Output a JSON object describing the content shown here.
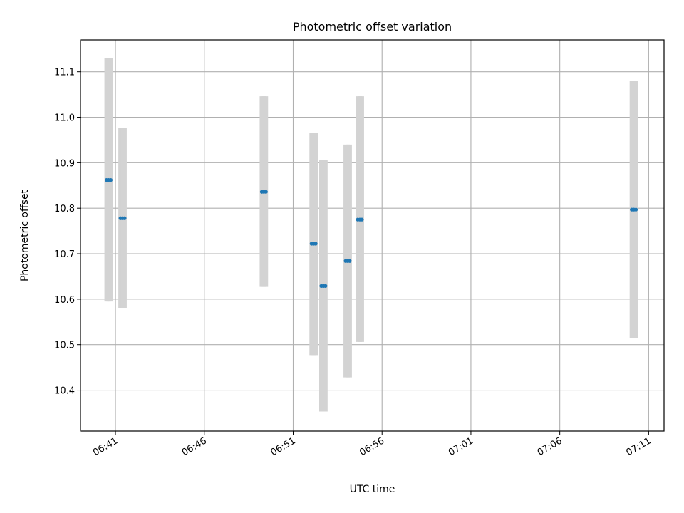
{
  "chart_data": {
    "type": "scatter",
    "title": "Photometric offset variation",
    "xlabel": "UTC time",
    "ylabel": "Photometric offset",
    "x_axis_kind": "time",
    "xlim": [
      "06:39:02",
      "07:11:52"
    ],
    "ylim": [
      10.31,
      11.17
    ],
    "x_ticks": [
      "06:41",
      "06:46",
      "06:51",
      "06:56",
      "07:01",
      "07:06",
      "07:11"
    ],
    "y_ticks": [
      10.4,
      10.5,
      10.6,
      10.7,
      10.8,
      10.9,
      11.0,
      11.1
    ],
    "grid": true,
    "colors": {
      "points": "#1f77b4",
      "error_bars": "#d3d3d3"
    },
    "series": [
      {
        "points": [
          {
            "x": "06:40:30",
            "y": 10.862,
            "low": 10.595,
            "high": 11.13
          },
          {
            "x": "06:40:37",
            "y": 10.862,
            "low": 10.595,
            "high": 11.13
          },
          {
            "x": "06:40:44",
            "y": 10.862,
            "low": 10.595,
            "high": 11.13
          },
          {
            "x": "06:41:17",
            "y": 10.778,
            "low": 10.581,
            "high": 10.976
          },
          {
            "x": "06:41:24",
            "y": 10.778,
            "low": 10.581,
            "high": 10.976
          },
          {
            "x": "06:41:31",
            "y": 10.778,
            "low": 10.581,
            "high": 10.976
          },
          {
            "x": "06:49:14",
            "y": 10.836,
            "low": 10.627,
            "high": 11.046
          },
          {
            "x": "06:49:21",
            "y": 10.836,
            "low": 10.627,
            "high": 11.046
          },
          {
            "x": "06:49:28",
            "y": 10.836,
            "low": 10.627,
            "high": 11.046
          },
          {
            "x": "06:52:02",
            "y": 10.722,
            "low": 10.477,
            "high": 10.966
          },
          {
            "x": "06:52:09",
            "y": 10.722,
            "low": 10.477,
            "high": 10.966
          },
          {
            "x": "06:52:16",
            "y": 10.722,
            "low": 10.477,
            "high": 10.966
          },
          {
            "x": "06:52:35",
            "y": 10.629,
            "low": 10.353,
            "high": 10.906
          },
          {
            "x": "06:52:42",
            "y": 10.629,
            "low": 10.353,
            "high": 10.906
          },
          {
            "x": "06:52:49",
            "y": 10.629,
            "low": 10.353,
            "high": 10.906
          },
          {
            "x": "06:53:57",
            "y": 10.684,
            "low": 10.428,
            "high": 10.94
          },
          {
            "x": "06:54:04",
            "y": 10.684,
            "low": 10.428,
            "high": 10.94
          },
          {
            "x": "06:54:11",
            "y": 10.684,
            "low": 10.428,
            "high": 10.94
          },
          {
            "x": "06:54:38",
            "y": 10.775,
            "low": 10.506,
            "high": 11.046
          },
          {
            "x": "06:54:45",
            "y": 10.775,
            "low": 10.506,
            "high": 11.046
          },
          {
            "x": "06:54:52",
            "y": 10.775,
            "low": 10.506,
            "high": 11.046
          },
          {
            "x": "07:10:03",
            "y": 10.797,
            "low": 10.515,
            "high": 11.08
          },
          {
            "x": "07:10:10",
            "y": 10.797,
            "low": 10.515,
            "high": 11.08
          },
          {
            "x": "07:10:17",
            "y": 10.797,
            "low": 10.515,
            "high": 11.08
          }
        ]
      }
    ]
  }
}
